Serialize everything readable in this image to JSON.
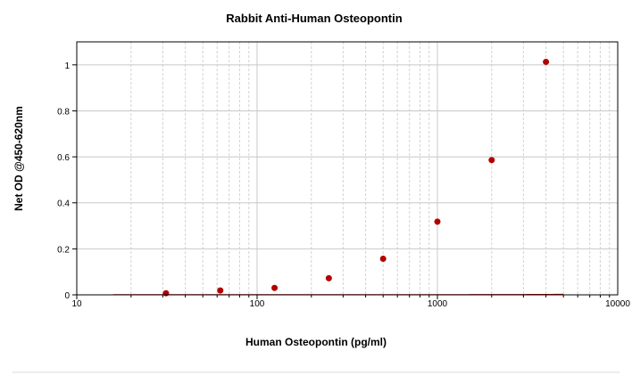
{
  "chart_data": {
    "type": "scatter",
    "title": "Rabbit Anti-Human Osteopontin",
    "xlabel": "Human Osteopontin (pg/ml)",
    "ylabel": "Net OD @450-620nm",
    "x_scale": "log",
    "xlim": [
      10,
      10000
    ],
    "ylim": [
      0,
      1.1
    ],
    "x_ticks": [
      10,
      100,
      1000,
      10000
    ],
    "x_tick_labels": [
      "10",
      "100",
      "1000",
      "10000"
    ],
    "y_ticks": [
      0,
      0.2,
      0.4,
      0.6,
      0.8,
      1
    ],
    "y_tick_labels": [
      "0",
      "0.2",
      "0.4",
      "0.6",
      "0.8",
      "1"
    ],
    "grid": true,
    "legend": "none",
    "series": [
      {
        "type": "scatter",
        "color": "#b20000",
        "x": [
          31.25,
          62.5,
          125,
          250,
          500,
          1000,
          2000,
          4000
        ],
        "y": [
          0.007,
          0.019,
          0.03,
          0.072,
          0.157,
          0.318,
          0.586,
          1.013
        ]
      },
      {
        "type": "line",
        "color": "#b20000",
        "fit": "exponential",
        "a": 0.0009,
        "b": 0.0002,
        "x_range": [
          15.9,
          5000
        ]
      }
    ]
  }
}
